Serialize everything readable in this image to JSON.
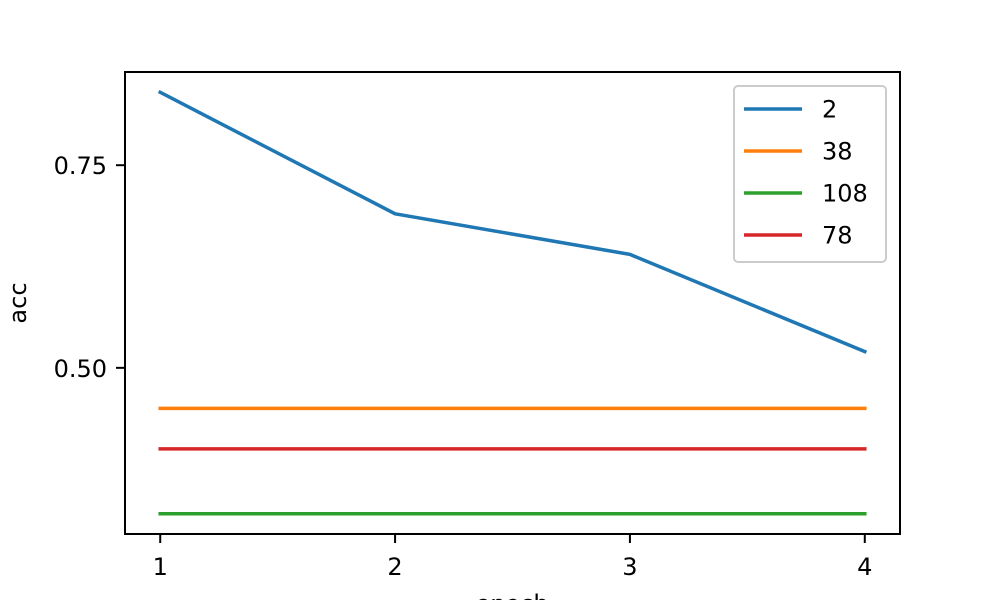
{
  "chart_data": {
    "type": "line",
    "title": "",
    "xlabel": "epoch",
    "ylabel": "acc",
    "x": [
      1,
      2,
      3,
      4
    ],
    "xlim": [
      0.85,
      4.15
    ],
    "ylim": [
      0.295,
      0.865
    ],
    "xticks": [
      1,
      2,
      3,
      4
    ],
    "xtick_labels": [
      "1",
      "2",
      "3",
      "4"
    ],
    "yticks": [
      0.5,
      0.75
    ],
    "ytick_labels": [
      "0.50",
      "0.75"
    ],
    "grid": false,
    "legend_position": "upper right",
    "series": [
      {
        "name": "2",
        "color": "#1f77b4",
        "values": [
          0.84,
          0.69,
          0.64,
          0.52
        ]
      },
      {
        "name": "38",
        "color": "#ff7f0e",
        "values": [
          0.45,
          0.45,
          0.45,
          0.45
        ]
      },
      {
        "name": "108",
        "color": "#2ca02c",
        "values": [
          0.32,
          0.32,
          0.32,
          0.32
        ]
      },
      {
        "name": "78",
        "color": "#d62728",
        "values": [
          0.4,
          0.4,
          0.4,
          0.4
        ]
      }
    ]
  }
}
